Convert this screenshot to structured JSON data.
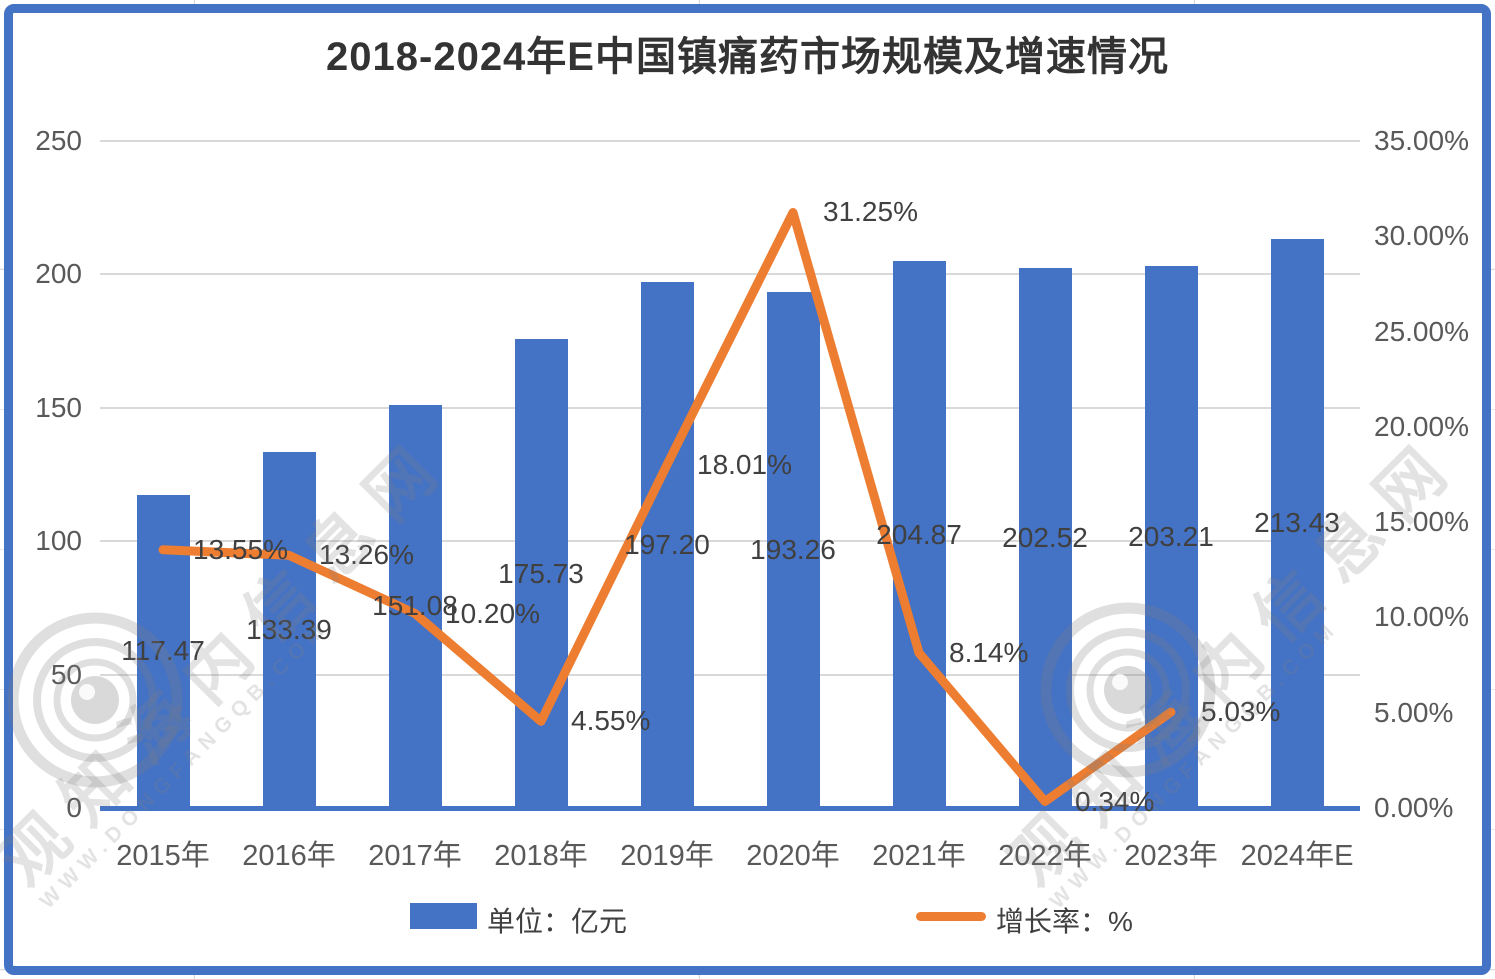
{
  "title": "2018-2024年E中国镇痛药市场规模及增速情况",
  "legend": [
    {
      "label": "单位：亿元",
      "swatch": "bar"
    },
    {
      "label": "增长率：%",
      "swatch": "line"
    }
  ],
  "watermark": {
    "cn": "观知海内信息网",
    "url": "WWW.DONGFANGQB.COM"
  },
  "colors": {
    "bar": "#4472C4",
    "line": "#ED7D31",
    "axis": "#4472C4",
    "grid": "#D9D9D9",
    "border": "#4472C4",
    "tick_text": "#595959",
    "label_text": "#404040"
  },
  "chart_data": {
    "type": "bar+line",
    "title": "2018-2024年E中国镇痛药市场规模及增速情况",
    "categories": [
      "2015年",
      "2016年",
      "2017年",
      "2018年",
      "2019年",
      "2020年",
      "2021年",
      "2022年",
      "2023年",
      "2024年E"
    ],
    "series": [
      {
        "name": "单位：亿元",
        "type": "bar",
        "axis": "left",
        "values": [
          117.47,
          133.39,
          151.08,
          175.73,
          197.2,
          193.26,
          204.87,
          202.52,
          203.21,
          213.43
        ],
        "labels": [
          "117.47",
          "133.39",
          "151.08",
          "175.73",
          "197.20",
          "193.26",
          "204.87",
          "202.52",
          "203.21",
          "213.43"
        ]
      },
      {
        "name": "增长率：%",
        "type": "line",
        "axis": "right",
        "values": [
          13.55,
          13.26,
          10.2,
          4.55,
          18.01,
          31.25,
          8.14,
          0.34,
          5.03
        ],
        "labels": [
          "13.55%",
          "13.26%",
          "10.20%",
          "4.55%",
          "18.01%",
          "31.25%",
          "8.14%",
          "0.34%",
          "5.03%"
        ]
      }
    ],
    "left_axis": {
      "min": 0,
      "max": 250,
      "ticks": [
        "250",
        "200",
        "150",
        "100",
        "50",
        "0"
      ]
    },
    "right_axis": {
      "min": 0,
      "max": 35,
      "ticks": [
        "35.00%",
        "30.00%",
        "25.00%",
        "20.00%",
        "15.00%",
        "10.00%",
        "5.00%",
        "0.00%"
      ]
    },
    "grid": true,
    "legend_position": "bottom"
  }
}
